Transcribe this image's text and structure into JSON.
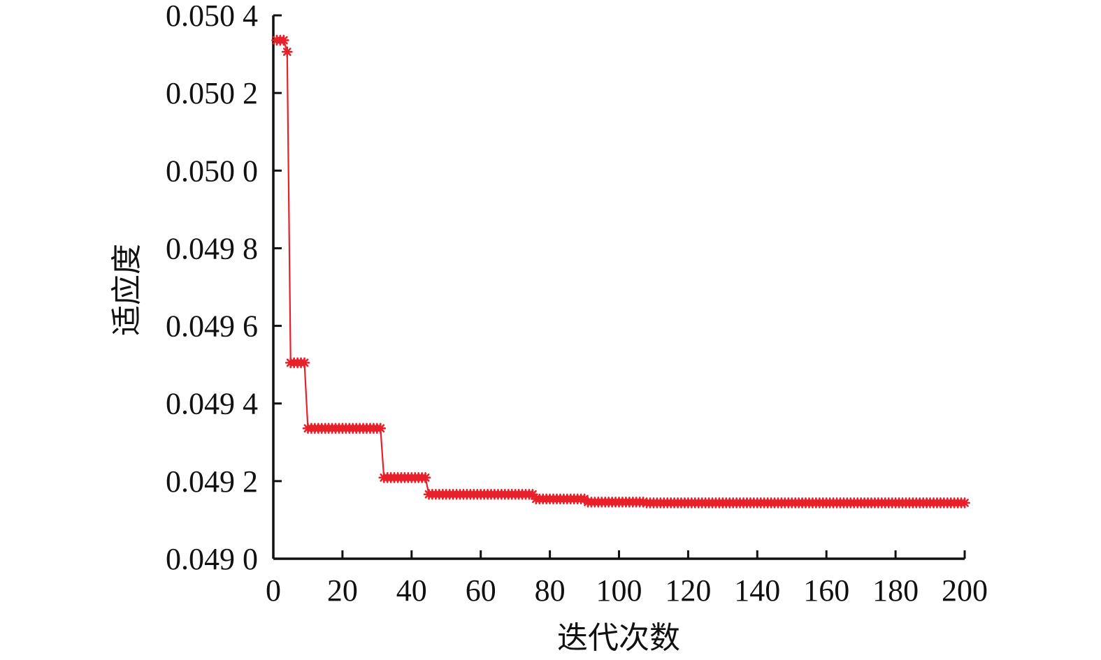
{
  "chart_data": {
    "type": "line",
    "xlabel": "迭代次数",
    "ylabel": "适应度",
    "xlim": [
      0,
      200
    ],
    "ylim": [
      0.049,
      0.0504
    ],
    "x_ticks": [
      0,
      20,
      40,
      60,
      80,
      100,
      120,
      140,
      160,
      180,
      200
    ],
    "y_ticks": [
      0.049,
      0.0492,
      0.0494,
      0.0496,
      0.0498,
      0.05,
      0.0502,
      0.0504
    ],
    "y_tick_labels": [
      "0.049 0",
      "0.049 2",
      "0.049 4",
      "0.049 6",
      "0.049 8",
      "0.050 0",
      "0.050 2",
      "0.050 4"
    ],
    "grid": false,
    "marker": "asterisk",
    "colors": {
      "series": "#e8202a",
      "axis": "#111111"
    },
    "series": [
      {
        "segments": [
          {
            "from": 1,
            "to": 3,
            "value": 0.050336
          },
          {
            "from": 4,
            "to": 4,
            "value": 0.050306
          },
          {
            "from": 5,
            "to": 9,
            "value": 0.049505
          },
          {
            "from": 10,
            "to": 31,
            "value": 0.049336
          },
          {
            "from": 32,
            "to": 44,
            "value": 0.049209
          },
          {
            "from": 45,
            "to": 75,
            "value": 0.049166
          },
          {
            "from": 76,
            "to": 90,
            "value": 0.049154
          },
          {
            "from": 91,
            "to": 107,
            "value": 0.049146
          },
          {
            "from": 108,
            "to": 200,
            "value": 0.049144
          }
        ]
      }
    ]
  }
}
